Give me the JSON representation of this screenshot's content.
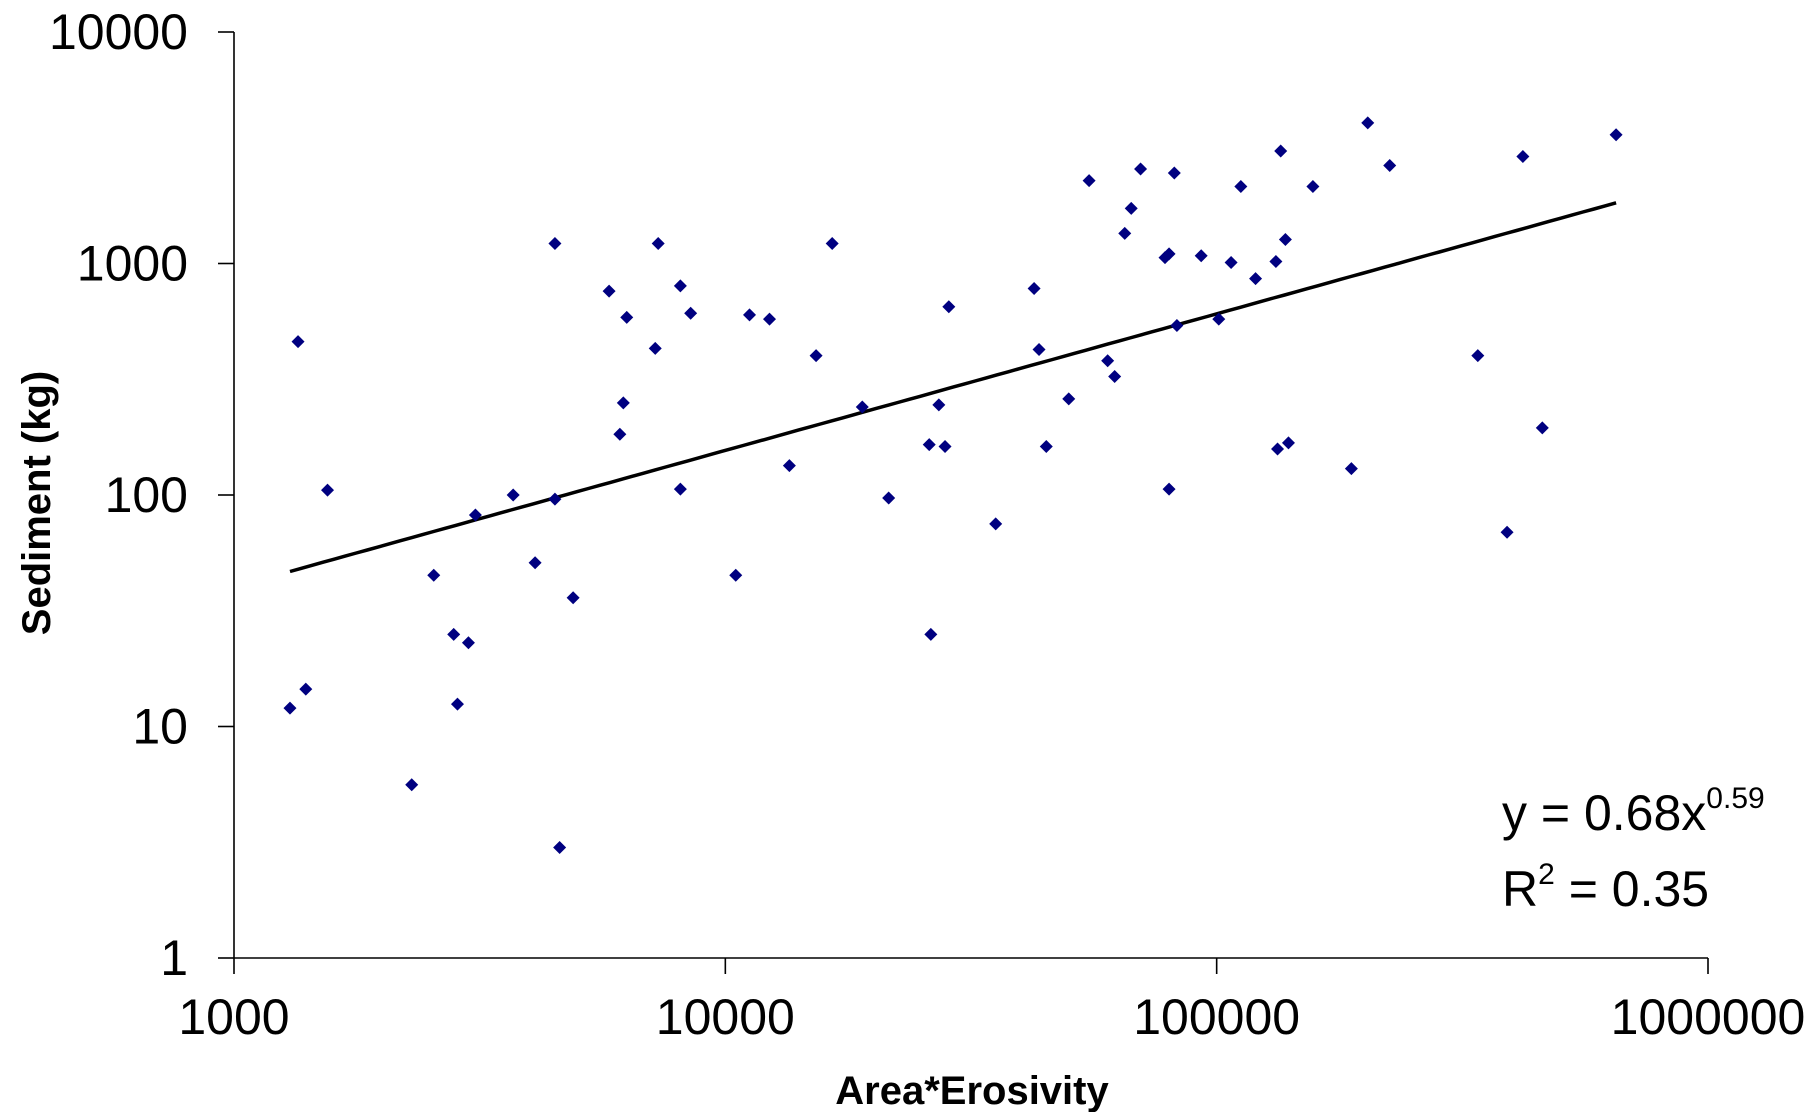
{
  "chart_data": {
    "type": "scatter",
    "xlabel": "Area*Erosivity",
    "ylabel": "Sediment (kg)",
    "x_scale": "log",
    "y_scale": "log",
    "xlim": [
      1000,
      1000000
    ],
    "ylim": [
      1,
      10000
    ],
    "x_ticks": [
      "1000",
      "10000",
      "100000",
      "1000000"
    ],
    "y_ticks": [
      "1",
      "10",
      "100",
      "1000",
      "10000"
    ],
    "grid": false,
    "marker_color": "#000080",
    "trendline": {
      "type": "power",
      "coefficient": 0.68,
      "exponent": 0.59,
      "x_range": [
        1300,
        650000
      ],
      "equation_text": "y = 0.68x",
      "equation_exponent": "0.59",
      "r2_text_prefix": "R",
      "r2_superscript": "2",
      "r2_text_suffix": " = 0.35"
    },
    "points": [
      [
        1300,
        12
      ],
      [
        1350,
        460
      ],
      [
        1400,
        14.5
      ],
      [
        1550,
        105
      ],
      [
        2300,
        5.6
      ],
      [
        2550,
        45
      ],
      [
        2800,
        25
      ],
      [
        2850,
        12.5
      ],
      [
        3000,
        23
      ],
      [
        3100,
        82
      ],
      [
        3700,
        100
      ],
      [
        4100,
        51
      ],
      [
        4500,
        1220
      ],
      [
        4500,
        96
      ],
      [
        4600,
        3
      ],
      [
        4900,
        36
      ],
      [
        5800,
        760
      ],
      [
        6100,
        183
      ],
      [
        6200,
        250
      ],
      [
        6300,
        585
      ],
      [
        7200,
        430
      ],
      [
        7300,
        1220
      ],
      [
        8100,
        800
      ],
      [
        8100,
        106
      ],
      [
        8500,
        610
      ],
      [
        10500,
        45
      ],
      [
        11200,
        600
      ],
      [
        12300,
        575
      ],
      [
        13500,
        134
      ],
      [
        15300,
        400
      ],
      [
        16500,
        1220
      ],
      [
        19000,
        240
      ],
      [
        21500,
        97
      ],
      [
        26000,
        165
      ],
      [
        26200,
        25
      ],
      [
        27200,
        245
      ],
      [
        28000,
        162
      ],
      [
        28500,
        650
      ],
      [
        35500,
        75
      ],
      [
        42500,
        780
      ],
      [
        43500,
        425
      ],
      [
        45000,
        162
      ],
      [
        50000,
        260
      ],
      [
        55000,
        2280
      ],
      [
        60000,
        380
      ],
      [
        62000,
        325
      ],
      [
        65000,
        1350
      ],
      [
        67000,
        1730
      ],
      [
        70000,
        2560
      ],
      [
        78500,
        1060
      ],
      [
        80000,
        1100
      ],
      [
        80000,
        106
      ],
      [
        82000,
        2460
      ],
      [
        83000,
        540
      ],
      [
        93000,
        1080
      ],
      [
        101000,
        575
      ],
      [
        107000,
        1010
      ],
      [
        112000,
        2150
      ],
      [
        120000,
        860
      ],
      [
        132000,
        1020
      ],
      [
        133000,
        158
      ],
      [
        135000,
        3060
      ],
      [
        138000,
        1270
      ],
      [
        140000,
        168
      ],
      [
        157000,
        2150
      ],
      [
        188000,
        130
      ],
      [
        203000,
        4050
      ],
      [
        225000,
        2650
      ],
      [
        340000,
        400
      ],
      [
        390000,
        69
      ],
      [
        420000,
        2900
      ],
      [
        460000,
        195
      ],
      [
        650000,
        3600
      ]
    ]
  }
}
